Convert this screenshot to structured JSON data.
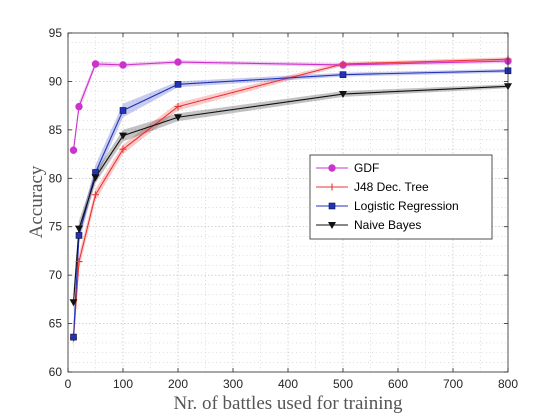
{
  "chart_data": {
    "type": "line",
    "title": "",
    "xlabel": "Nr. of battles used for training",
    "ylabel": "Accuracy",
    "xlim": [
      0,
      800
    ],
    "ylim": [
      60,
      95
    ],
    "xticks": [
      0,
      100,
      200,
      300,
      400,
      500,
      600,
      700,
      800
    ],
    "yticks": [
      60,
      65,
      70,
      75,
      80,
      85,
      90,
      95
    ],
    "grid": true,
    "legend_position": "center-right",
    "series": [
      {
        "name": "GDF",
        "color": "#cc33cc",
        "marker": "circle",
        "x": [
          10,
          20,
          50,
          100,
          200,
          500,
          800
        ],
        "y": [
          82.9,
          87.4,
          91.8,
          91.7,
          92.0,
          91.7,
          92.1
        ],
        "band": [
          0.5,
          0.5,
          0.3,
          0.2,
          0.2,
          0.2,
          0.2
        ]
      },
      {
        "name": "J48 Dec. Tree",
        "color": "#ee3333",
        "marker": "plus",
        "x": [
          10,
          20,
          50,
          100,
          200,
          500,
          800
        ],
        "y": [
          63.5,
          71.4,
          78.3,
          83.0,
          87.4,
          91.8,
          92.3
        ],
        "band": [
          1.0,
          0.8,
          0.6,
          0.5,
          0.4,
          0.2,
          0.2
        ]
      },
      {
        "name": "Logistic Regression",
        "color": "#2233bb",
        "marker": "square",
        "x": [
          10,
          20,
          50,
          100,
          200,
          500,
          800
        ],
        "y": [
          63.6,
          74.1,
          80.6,
          87.0,
          89.7,
          90.7,
          91.1
        ],
        "band": [
          1.5,
          0.8,
          0.8,
          0.7,
          0.3,
          0.2,
          0.2
        ]
      },
      {
        "name": "Naive Bayes",
        "color": "#111111",
        "marker": "triangle-down",
        "x": [
          10,
          20,
          50,
          100,
          200,
          500,
          800
        ],
        "y": [
          67.2,
          74.8,
          80.1,
          84.4,
          86.3,
          88.7,
          89.5
        ],
        "band": [
          1.2,
          0.8,
          0.6,
          0.6,
          0.4,
          0.3,
          0.2
        ]
      }
    ]
  }
}
